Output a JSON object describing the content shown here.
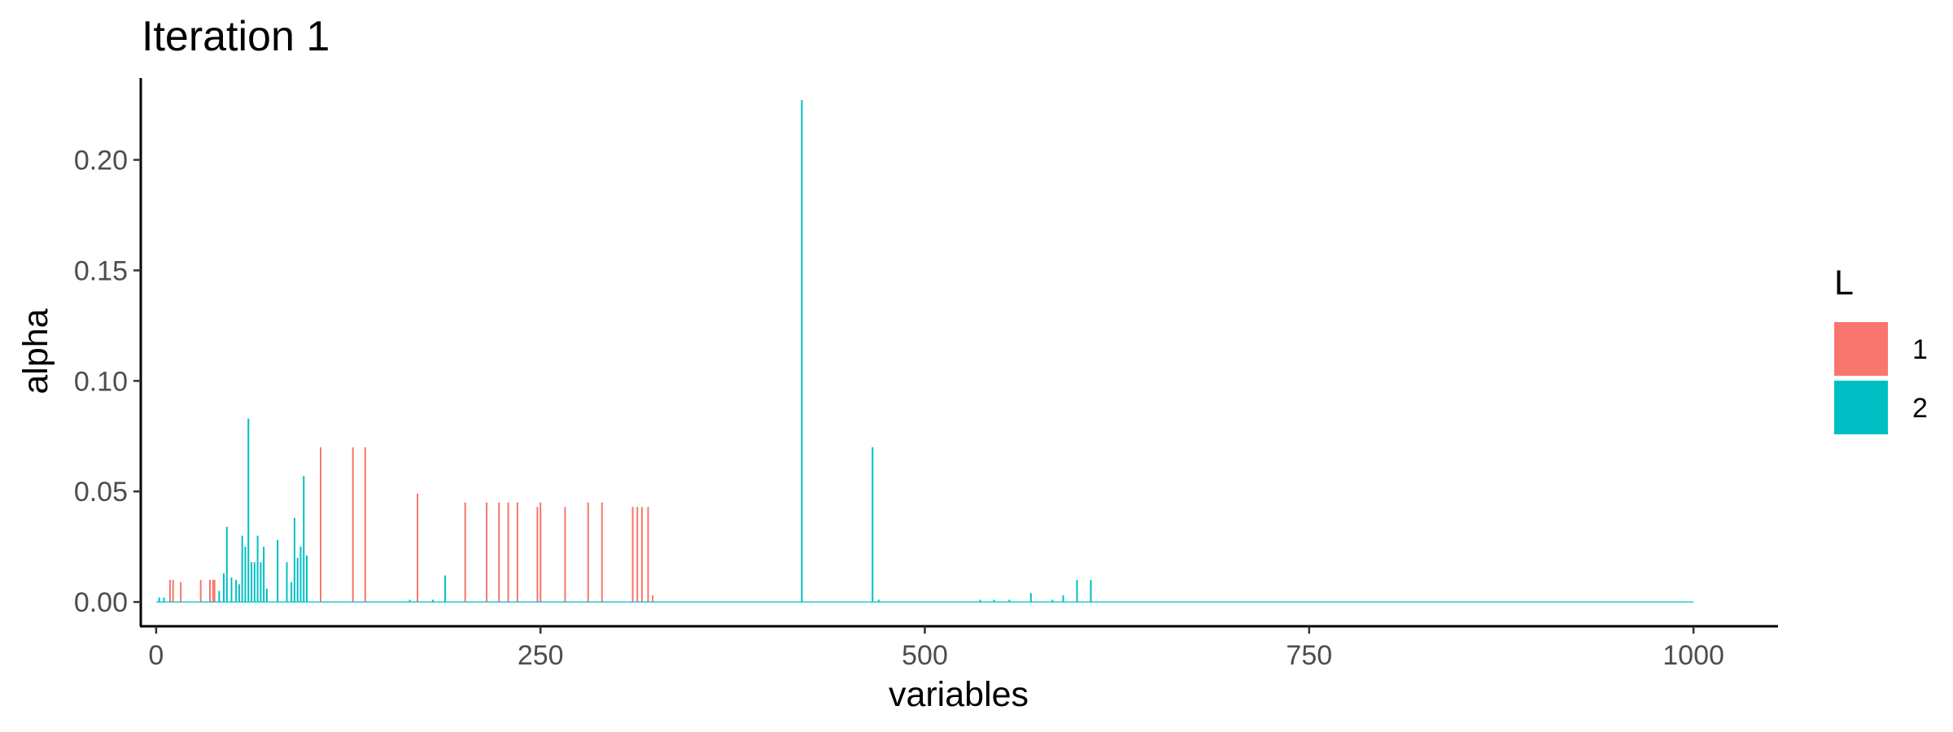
{
  "chart_data": {
    "type": "bar",
    "title": "Iteration 1",
    "xlabel": "variables",
    "ylabel": "alpha",
    "xlim": [
      -10,
      1055
    ],
    "ylim": [
      -0.011,
      0.237
    ],
    "x_ticks": [
      0,
      250,
      500,
      750,
      1000
    ],
    "x_tick_labels": [
      "0",
      "250",
      "500",
      "750",
      "1000"
    ],
    "y_ticks": [
      0.0,
      0.05,
      0.1,
      0.15,
      0.2
    ],
    "y_tick_labels": [
      "0.00",
      "0.05",
      "0.10",
      "0.15",
      "0.20"
    ],
    "grid": false,
    "legend": {
      "title": "L",
      "position": "right",
      "entries": [
        {
          "label": "1",
          "color": "#F8766D"
        },
        {
          "label": "2",
          "color": "#00BFC4"
        }
      ]
    },
    "series": [
      {
        "color": "#F8766D",
        "points": [
          [
            9,
            0.01
          ],
          [
            11,
            0.01
          ],
          [
            16,
            0.009
          ],
          [
            29,
            0.01
          ],
          [
            35,
            0.01
          ],
          [
            37,
            0.01
          ],
          [
            38,
            0.01
          ],
          [
            107,
            0.07
          ],
          [
            128,
            0.07
          ],
          [
            136,
            0.07
          ],
          [
            170,
            0.049
          ],
          [
            201,
            0.045
          ],
          [
            215,
            0.045
          ],
          [
            223,
            0.045
          ],
          [
            229,
            0.045
          ],
          [
            235,
            0.045
          ],
          [
            248,
            0.043
          ],
          [
            250,
            0.045
          ],
          [
            266,
            0.043
          ],
          [
            281,
            0.045
          ],
          [
            290,
            0.045
          ],
          [
            310,
            0.043
          ],
          [
            313,
            0.043
          ],
          [
            316,
            0.043
          ],
          [
            320,
            0.043
          ],
          [
            323,
            0.003
          ]
        ]
      },
      {
        "color": "#00BFC4",
        "points": [
          [
            2,
            0.002
          ],
          [
            5,
            0.002
          ],
          [
            41,
            0.005
          ],
          [
            44,
            0.013
          ],
          [
            46,
            0.034
          ],
          [
            49,
            0.011
          ],
          [
            52,
            0.01
          ],
          [
            54,
            0.008
          ],
          [
            56,
            0.03
          ],
          [
            58,
            0.025
          ],
          [
            60,
            0.083
          ],
          [
            62,
            0.018
          ],
          [
            64,
            0.018
          ],
          [
            66,
            0.03
          ],
          [
            68,
            0.018
          ],
          [
            70,
            0.025
          ],
          [
            72,
            0.006
          ],
          [
            79,
            0.028
          ],
          [
            85,
            0.018
          ],
          [
            88,
            0.009
          ],
          [
            90,
            0.038
          ],
          [
            92,
            0.02
          ],
          [
            94,
            0.025
          ],
          [
            96,
            0.057
          ],
          [
            98,
            0.021
          ],
          [
            165,
            0.001
          ],
          [
            180,
            0.001
          ],
          [
            188,
            0.012
          ],
          [
            420,
            0.227
          ],
          [
            466,
            0.07
          ],
          [
            470,
            0.001
          ],
          [
            536,
            0.001
          ],
          [
            545,
            0.001
          ],
          [
            555,
            0.001
          ],
          [
            569,
            0.004
          ],
          [
            583,
            0.001
          ],
          [
            590,
            0.003
          ],
          [
            599,
            0.01
          ],
          [
            608,
            0.01
          ],
          [
            1000,
            0.0
          ]
        ]
      }
    ]
  }
}
